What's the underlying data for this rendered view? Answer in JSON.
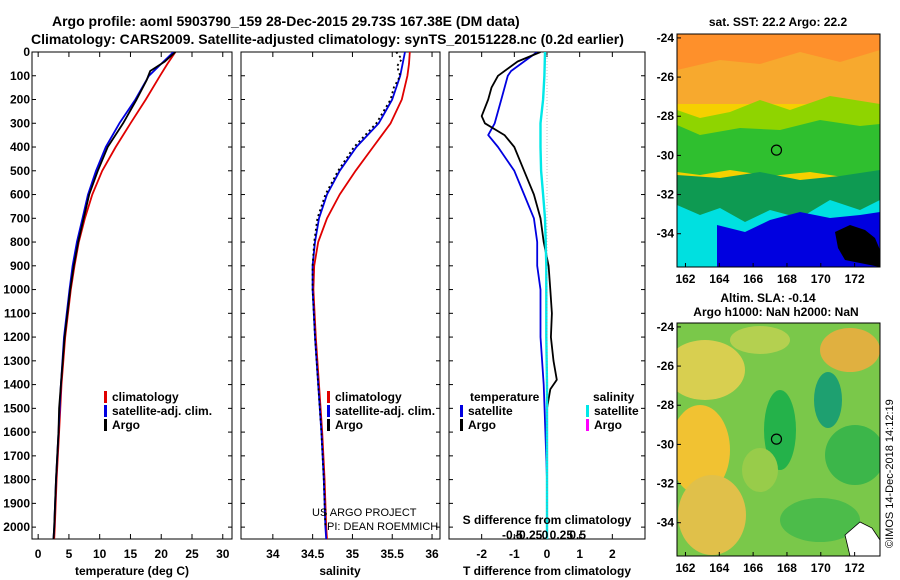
{
  "title": {
    "line1": "Argo profile: aoml 5903790_159 28-Dec-2015 29.73S 167.38E (DM data)",
    "line2": "Climatology: CARS2009. Satellite-adjusted climatology: synTS_20151228.nc (0.2d earlier)"
  },
  "colors": {
    "climatology": "#e00000",
    "satellite": "#0000e0",
    "argo": "#000000",
    "satellite_salinity": "#00e8e8",
    "argo_salinity": "#ff00ff"
  },
  "depth_axis": {
    "ylim": [
      2050,
      0
    ],
    "ticks": [
      0,
      100,
      200,
      300,
      400,
      500,
      600,
      700,
      800,
      900,
      1000,
      1100,
      1200,
      1300,
      1400,
      1500,
      1600,
      1700,
      1800,
      1900,
      2000
    ]
  },
  "credit": "US ARGO PROJECT",
  "credit2": "PI: DEAN ROEMMICH",
  "imos_stamp": "©IMOS 14-Dec-2018 14:12:19",
  "chart_data": [
    {
      "id": "temperature",
      "type": "line",
      "xlabel": "temperature (deg C)",
      "xlim": [
        -1,
        31.5
      ],
      "xticks": [
        0,
        5,
        10,
        15,
        20,
        25,
        30
      ],
      "legend": [
        "climatology",
        "satellite-adj. clim.",
        "Argo"
      ],
      "series": [
        {
          "name": "climatology",
          "color_key": "climatology",
          "dash": false,
          "depth": [
            0,
            50,
            100,
            200,
            300,
            400,
            500,
            600,
            700,
            800,
            900,
            1000,
            1200,
            1400,
            1500,
            1600,
            1800,
            2000,
            2050
          ],
          "values": [
            22.3,
            21.0,
            19.8,
            17.5,
            15.0,
            12.6,
            10.4,
            8.8,
            7.6,
            6.6,
            5.9,
            5.3,
            4.4,
            3.8,
            3.6,
            3.4,
            3.0,
            2.7,
            2.6
          ]
        },
        {
          "name": "satellite-adj. clim.",
          "color_key": "satellite",
          "dash": false,
          "depth": [
            0,
            50,
            100,
            200,
            300,
            400,
            500,
            600,
            700,
            800,
            900,
            1000,
            1200,
            1400,
            1500,
            1600,
            1800,
            2000,
            2050
          ],
          "values": [
            22.0,
            20.0,
            18.0,
            15.8,
            13.2,
            11.0,
            9.4,
            8.1,
            7.2,
            6.3,
            5.6,
            5.1,
            4.2,
            3.7,
            3.5,
            3.3,
            2.9,
            2.6,
            2.5
          ]
        },
        {
          "name": "Argo",
          "color_key": "argo",
          "dash": false,
          "depth": [
            0,
            40,
            80,
            120,
            200,
            300,
            400,
            500,
            600,
            700,
            800,
            900,
            1000,
            1200,
            1400,
            1500,
            1600,
            1800,
            2000,
            2050
          ],
          "values": [
            22.3,
            20.6,
            18.2,
            17.6,
            16.0,
            13.8,
            11.3,
            9.7,
            8.3,
            7.4,
            6.5,
            5.8,
            5.2,
            4.3,
            3.7,
            3.4,
            3.3,
            2.9,
            2.6,
            2.5
          ]
        }
      ]
    },
    {
      "id": "salinity",
      "type": "line",
      "xlabel": "salinity",
      "xlim": [
        33.6,
        36.1
      ],
      "xticks": [
        34,
        34.5,
        35,
        35.5,
        36
      ],
      "legend": [
        "climatology",
        "satellite-adj. clim.",
        "Argo"
      ],
      "series": [
        {
          "name": "climatology",
          "color_key": "climatology",
          "dash": false,
          "depth": [
            0,
            50,
            100,
            200,
            300,
            400,
            500,
            600,
            700,
            800,
            900,
            1000,
            1200,
            1400,
            1600,
            1800,
            2000,
            2050
          ],
          "values": [
            35.72,
            35.71,
            35.69,
            35.62,
            35.48,
            35.26,
            35.04,
            34.84,
            34.68,
            34.57,
            34.52,
            34.51,
            34.54,
            34.58,
            34.62,
            34.65,
            34.67,
            34.68
          ]
        },
        {
          "name": "satellite-adj. clim.",
          "color_key": "satellite",
          "dash": false,
          "depth": [
            0,
            50,
            100,
            200,
            300,
            400,
            500,
            600,
            700,
            800,
            900,
            1000,
            1200,
            1400,
            1600,
            1800,
            2000,
            2050
          ],
          "values": [
            35.66,
            35.63,
            35.6,
            35.5,
            35.33,
            35.05,
            34.84,
            34.68,
            34.58,
            34.53,
            34.5,
            34.5,
            34.53,
            34.57,
            34.61,
            34.64,
            34.66,
            34.67
          ]
        },
        {
          "name": "Argo",
          "color_key": "argo",
          "dash": true,
          "depth": [
            0,
            30,
            60,
            100,
            150,
            200,
            300,
            400,
            500,
            600,
            700,
            800,
            900,
            1000,
            1200,
            1400,
            1600,
            1800,
            2000
          ],
          "values": [
            35.55,
            35.62,
            35.56,
            35.6,
            35.52,
            35.48,
            35.3,
            35.02,
            34.82,
            34.66,
            34.56,
            34.52,
            34.5,
            34.5,
            34.53,
            34.57,
            34.61,
            34.64,
            34.66
          ]
        }
      ]
    },
    {
      "id": "difference",
      "type": "line",
      "xlabel": "T difference from climatology",
      "xlabel_top": "S difference from climatology",
      "xlim": [
        -3,
        3
      ],
      "xticks": [
        -2,
        -1,
        0,
        1,
        2
      ],
      "xticks_s": [
        -0.5,
        -0.25,
        0,
        0.25,
        0.5
      ],
      "xticks_s_labels": [
        "-0.5",
        "-0.25",
        "0",
        "0.25",
        "0.5"
      ],
      "legend_left_title": "temperature",
      "legend_right_title": "salinity",
      "legend_left": [
        "satellite",
        "Argo"
      ],
      "legend_right": [
        "satellite",
        "Argo"
      ],
      "series": [
        {
          "name": "temperature satellite",
          "color_key": "satellite",
          "dash": false,
          "depth": [
            0,
            40,
            80,
            100,
            200,
            300,
            350,
            400,
            500,
            600,
            700,
            800,
            900,
            1000,
            1200,
            1400,
            1600,
            1800,
            2000,
            2050
          ],
          "values": [
            -0.3,
            -0.7,
            -1.1,
            -1.2,
            -1.4,
            -1.6,
            -1.8,
            -1.5,
            -1.0,
            -0.7,
            -0.4,
            -0.3,
            -0.3,
            -0.2,
            -0.2,
            -0.1,
            -0.05,
            0.0,
            0.0,
            0.0
          ]
        },
        {
          "name": "temperature Argo",
          "color_key": "argo",
          "dash": false,
          "depth": [
            0,
            40,
            100,
            150,
            200,
            270,
            300,
            350,
            400,
            500,
            600,
            700,
            800,
            900,
            1000,
            1100,
            1200,
            1300,
            1380,
            1420,
            1500,
            1600,
            1800,
            2000,
            2050
          ],
          "values": [
            -0.2,
            -0.9,
            -1.5,
            -1.7,
            -1.8,
            -2.0,
            -1.9,
            -1.3,
            -1.0,
            -0.7,
            -0.4,
            -0.2,
            -0.1,
            0.05,
            0.1,
            0.15,
            0.12,
            0.2,
            0.3,
            0.1,
            0.0,
            0.0,
            0.0,
            0.0,
            0.0
          ]
        },
        {
          "name": "salinity satellite",
          "color_key": "satellite_salinity",
          "dash": false,
          "depth": [
            0,
            100,
            200,
            300,
            400,
            500,
            600,
            700,
            800,
            900,
            1000,
            1200,
            1400,
            1600,
            1800,
            2000,
            2050
          ],
          "values": [
            -0.03,
            -0.04,
            -0.06,
            -0.1,
            -0.1,
            -0.09,
            -0.06,
            -0.03,
            -0.02,
            -0.01,
            -0.01,
            -0.01,
            0.0,
            0.0,
            0.0,
            0.0,
            0.0
          ]
        }
      ]
    }
  ],
  "map_sst": {
    "title": "sat. SST: 22.2 Argo: 22.2",
    "lon_ticks": [
      162,
      164,
      166,
      168,
      170,
      172
    ],
    "lat_ticks": [
      -24,
      -26,
      -28,
      -30,
      -32,
      -34
    ],
    "lon_range": [
      161.5,
      173.5
    ],
    "lat_range": [
      -23.8,
      -35.7
    ],
    "float_position": [
      167.38,
      -29.73
    ]
  },
  "map_sla": {
    "title": "Altim. SLA: -0.14",
    "subtitle": "Argo h1000: NaN h2000: NaN",
    "lon_ticks": [
      162,
      164,
      166,
      168,
      170,
      172
    ],
    "lat_ticks": [
      -24,
      -26,
      -28,
      -30,
      -32,
      -34
    ],
    "lon_range": [
      161.5,
      173.5
    ],
    "lat_range": [
      -23.8,
      -35.7
    ],
    "float_position": [
      167.38,
      -29.73
    ]
  }
}
